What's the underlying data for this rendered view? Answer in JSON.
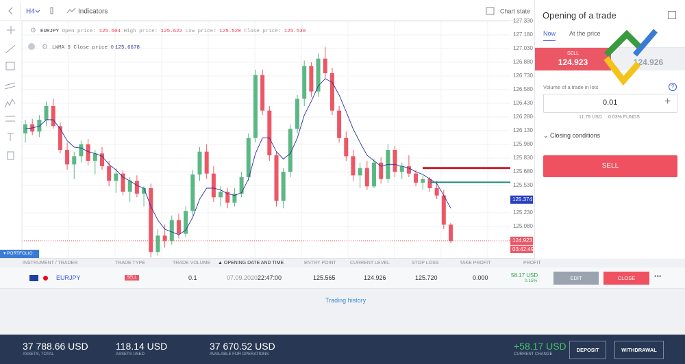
{
  "toolbar": {
    "timeframe": "H4",
    "indicators": "Indicators",
    "chart_state": "Chart state"
  },
  "chart": {
    "type": "candlestick",
    "legend": {
      "symbol": "EURJPY",
      "open_label": "Open price:",
      "open": "125.604",
      "high_label": "High price:",
      "high": "125.622",
      "low_label": "Low price:",
      "low": "125.520",
      "close_label": "Close price:",
      "close": "125.530"
    },
    "indicator": {
      "name": "LWMA 9 Close price 0",
      "value": "125.6678"
    },
    "ylim": [
      124.735,
      127.3525
    ],
    "yticks": [
      {
        "value": 127.33,
        "label": "127.330"
      },
      {
        "value": 127.18,
        "label": "127.180"
      },
      {
        "value": 127.03,
        "label": "127.030"
      },
      {
        "value": 126.88,
        "label": "126.880"
      },
      {
        "value": 126.73,
        "label": "126.730"
      },
      {
        "value": 126.58,
        "label": "126.580"
      },
      {
        "value": 126.43,
        "label": "126.430"
      },
      {
        "value": 126.28,
        "label": "126.280"
      },
      {
        "value": 126.13,
        "label": "126.130"
      },
      {
        "value": 125.98,
        "label": "125.980"
      },
      {
        "value": 125.83,
        "label": "125.830"
      },
      {
        "value": 125.68,
        "label": "125.680"
      },
      {
        "value": 125.53,
        "label": "125.530"
      },
      {
        "value": 125.23,
        "label": "125.230"
      },
      {
        "value": 125.08,
        "label": "125.080"
      }
    ],
    "up_color": "#5bb884",
    "down_color": "#ec5766",
    "lwma_color": "#2a2f9e",
    "candles": [
      {
        "o": 126.1,
        "h": 126.25,
        "l": 126.0,
        "c": 126.2
      },
      {
        "o": 126.2,
        "h": 126.26,
        "l": 126.08,
        "c": 126.12
      },
      {
        "o": 126.12,
        "h": 126.3,
        "l": 126.06,
        "c": 126.25
      },
      {
        "o": 126.25,
        "h": 126.45,
        "l": 126.18,
        "c": 126.4
      },
      {
        "o": 126.4,
        "h": 126.48,
        "l": 126.15,
        "c": 126.18
      },
      {
        "o": 126.18,
        "h": 126.22,
        "l": 125.88,
        "c": 125.92
      },
      {
        "o": 125.92,
        "h": 126.0,
        "l": 125.7,
        "c": 125.76
      },
      {
        "o": 125.76,
        "h": 125.9,
        "l": 125.6,
        "c": 125.85
      },
      {
        "o": 125.85,
        "h": 126.02,
        "l": 125.78,
        "c": 125.98
      },
      {
        "o": 125.98,
        "h": 126.04,
        "l": 125.75,
        "c": 125.8
      },
      {
        "o": 125.8,
        "h": 125.92,
        "l": 125.65,
        "c": 125.88
      },
      {
        "o": 125.88,
        "h": 125.95,
        "l": 125.7,
        "c": 125.74
      },
      {
        "o": 125.74,
        "h": 125.8,
        "l": 125.52,
        "c": 125.58
      },
      {
        "o": 125.58,
        "h": 125.72,
        "l": 125.45,
        "c": 125.66
      },
      {
        "o": 125.66,
        "h": 125.7,
        "l": 125.42,
        "c": 125.46
      },
      {
        "o": 125.46,
        "h": 125.62,
        "l": 125.35,
        "c": 125.58
      },
      {
        "o": 125.58,
        "h": 125.64,
        "l": 125.4,
        "c": 125.44
      },
      {
        "o": 125.44,
        "h": 125.52,
        "l": 125.3,
        "c": 125.5
      },
      {
        "o": 125.5,
        "h": 125.55,
        "l": 124.74,
        "c": 124.8
      },
      {
        "o": 124.8,
        "h": 125.05,
        "l": 124.76,
        "c": 124.98
      },
      {
        "o": 124.98,
        "h": 125.1,
        "l": 124.85,
        "c": 124.92
      },
      {
        "o": 124.92,
        "h": 125.2,
        "l": 124.88,
        "c": 125.15
      },
      {
        "o": 125.15,
        "h": 125.22,
        "l": 124.95,
        "c": 125.0
      },
      {
        "o": 125.0,
        "h": 125.3,
        "l": 124.96,
        "c": 125.25
      },
      {
        "o": 125.25,
        "h": 125.7,
        "l": 125.2,
        "c": 125.65
      },
      {
        "o": 125.65,
        "h": 125.95,
        "l": 125.58,
        "c": 125.9
      },
      {
        "o": 125.9,
        "h": 125.98,
        "l": 125.6,
        "c": 125.66
      },
      {
        "o": 125.66,
        "h": 125.74,
        "l": 125.35,
        "c": 125.4
      },
      {
        "o": 125.4,
        "h": 125.52,
        "l": 125.3,
        "c": 125.46
      },
      {
        "o": 125.46,
        "h": 125.5,
        "l": 125.28,
        "c": 125.34
      },
      {
        "o": 125.34,
        "h": 125.5,
        "l": 125.3,
        "c": 125.44
      },
      {
        "o": 125.44,
        "h": 125.68,
        "l": 125.4,
        "c": 125.62
      },
      {
        "o": 125.62,
        "h": 126.1,
        "l": 125.58,
        "c": 126.05
      },
      {
        "o": 126.05,
        "h": 126.8,
        "l": 126.0,
        "c": 126.74
      },
      {
        "o": 126.74,
        "h": 126.8,
        "l": 126.3,
        "c": 126.35
      },
      {
        "o": 126.35,
        "h": 126.4,
        "l": 125.8,
        "c": 125.86
      },
      {
        "o": 125.86,
        "h": 125.9,
        "l": 125.3,
        "c": 125.36
      },
      {
        "o": 125.36,
        "h": 125.72,
        "l": 125.28,
        "c": 125.68
      },
      {
        "o": 125.68,
        "h": 126.2,
        "l": 125.62,
        "c": 126.15
      },
      {
        "o": 126.15,
        "h": 126.52,
        "l": 126.1,
        "c": 126.48
      },
      {
        "o": 126.48,
        "h": 126.9,
        "l": 126.4,
        "c": 126.84
      },
      {
        "o": 126.84,
        "h": 126.88,
        "l": 126.5,
        "c": 126.56
      },
      {
        "o": 126.56,
        "h": 126.98,
        "l": 126.5,
        "c": 126.92
      },
      {
        "o": 126.92,
        "h": 127.05,
        "l": 126.7,
        "c": 126.76
      },
      {
        "o": 126.76,
        "h": 126.82,
        "l": 126.3,
        "c": 126.35
      },
      {
        "o": 126.35,
        "h": 126.4,
        "l": 126.0,
        "c": 126.05
      },
      {
        "o": 126.05,
        "h": 126.12,
        "l": 125.8,
        "c": 125.85
      },
      {
        "o": 125.85,
        "h": 125.92,
        "l": 125.58,
        "c": 125.64
      },
      {
        "o": 125.64,
        "h": 125.78,
        "l": 125.5,
        "c": 125.72
      },
      {
        "o": 125.72,
        "h": 125.8,
        "l": 125.48,
        "c": 125.52
      },
      {
        "o": 125.52,
        "h": 125.82,
        "l": 125.5,
        "c": 125.78
      },
      {
        "o": 125.78,
        "h": 125.84,
        "l": 125.55,
        "c": 125.6
      },
      {
        "o": 125.6,
        "h": 125.98,
        "l": 125.56,
        "c": 125.92
      },
      {
        "o": 125.92,
        "h": 125.96,
        "l": 125.62,
        "c": 125.68
      },
      {
        "o": 125.68,
        "h": 125.78,
        "l": 125.6,
        "c": 125.74
      },
      {
        "o": 125.74,
        "h": 125.86,
        "l": 125.62,
        "c": 125.66
      },
      {
        "o": 125.66,
        "h": 125.7,
        "l": 125.52,
        "c": 125.56
      },
      {
        "o": 125.56,
        "h": 125.64,
        "l": 125.48,
        "c": 125.6
      },
      {
        "o": 125.6,
        "h": 125.62,
        "l": 125.46,
        "c": 125.5
      },
      {
        "o": 125.5,
        "h": 125.58,
        "l": 125.38,
        "c": 125.42
      },
      {
        "o": 125.42,
        "h": 125.48,
        "l": 125.05,
        "c": 125.1
      },
      {
        "o": 125.1,
        "h": 125.12,
        "l": 124.9,
        "c": 124.92
      }
    ],
    "lwma": [
      126.15,
      126.16,
      126.18,
      126.25,
      126.25,
      126.15,
      126.02,
      125.95,
      125.94,
      125.9,
      125.88,
      125.85,
      125.76,
      125.7,
      125.62,
      125.58,
      125.53,
      125.5,
      125.3,
      125.15,
      125.05,
      125.02,
      124.99,
      125.04,
      125.18,
      125.38,
      125.5,
      125.5,
      125.48,
      125.44,
      125.42,
      125.45,
      125.6,
      125.88,
      126.05,
      126.05,
      125.9,
      125.82,
      125.88,
      126.05,
      126.3,
      126.45,
      126.62,
      126.7,
      126.66,
      126.52,
      126.34,
      126.15,
      126.0,
      125.86,
      125.8,
      125.74,
      125.76,
      125.76,
      125.74,
      125.72,
      125.68,
      125.65,
      125.6,
      125.55,
      125.42,
      125.28
    ],
    "stop_loss_line": 125.72,
    "entry_line": 125.565,
    "last_price": 125.374,
    "sell_price": 124.923,
    "timer": "03:42:49"
  },
  "panel": {
    "title": "Opening of a trade",
    "tab_now": "Now",
    "tab_price": "At the price",
    "sell_label": "SELL",
    "sell_price": "124.923",
    "buy_price": "124.926",
    "volume_label": "Volume of a trade in lots",
    "volume": "0.01",
    "cost": "11.79 USD",
    "funds": "0.03% FUNDS",
    "closing": "Closing conditions",
    "button": "SELL"
  },
  "portfolio": {
    "tab": "PORTFOLIO",
    "headers": [
      "INSTRUMENT / TRADER",
      "TRADE TYPE",
      "TRADE VOLUME",
      "▲ OPENING DATE AND TIME",
      "ENTRY POINT",
      "CURRENT LEVEL",
      "STOP LOSS",
      "TAKE PROFIT",
      "PROFIT"
    ],
    "row": {
      "instrument": "EURJPY",
      "type": "SELL",
      "volume": "0.1",
      "date": "07.09.2020",
      "time": "22:47:00",
      "entry": "125.565",
      "current": "124.926",
      "stop_loss": "125.720",
      "take_profit": "0.000",
      "profit": "58.17 USD",
      "profit_pct": "0.15%",
      "edit": "EDIT",
      "close": "CLOSE"
    },
    "history": "Trading history"
  },
  "footer": {
    "total": "37 788.66 USD",
    "total_label": "ASSETS, TOTAL",
    "used": "118.14 USD",
    "used_label": "ASSETS USED",
    "available": "37 670.52 USD",
    "available_label": "AVAILABLE FOR OPERATIONS",
    "change": "+58.17 USD",
    "change_label": "CURRENT CHANGE",
    "deposit": "DEPOSIT",
    "withdrawal": "WITHDRAWAL"
  }
}
